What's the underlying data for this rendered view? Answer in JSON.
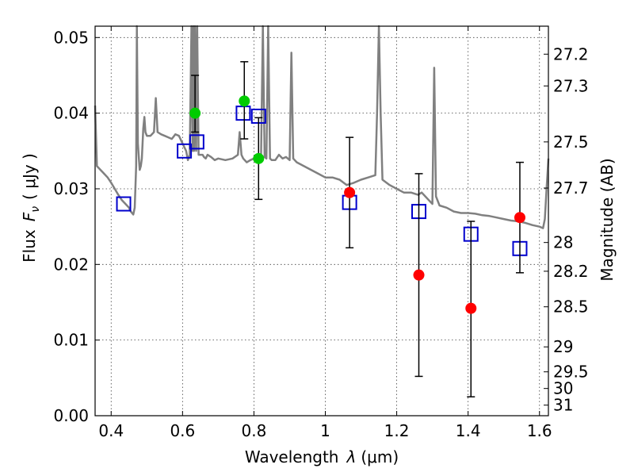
{
  "chart_data": {
    "type": "scatter",
    "xlabel_text": "Wavelength",
    "xlabel_symbol": "λ",
    "xlabel_unit": "(μm)",
    "ylabel_text": "Flux",
    "ylabel_symbol": "F",
    "ylabel_subscript": "ν",
    "ylabel_unit": "( μJy )",
    "y2label": "Magnitude (AB)",
    "xlim": [
      0.355,
      1.625
    ],
    "ylim": [
      0.0,
      0.0515
    ],
    "xticks": [
      {
        "value": 0.4,
        "label": "0.4"
      },
      {
        "value": 0.6,
        "label": "0.6"
      },
      {
        "value": 0.8,
        "label": "0.8"
      },
      {
        "value": 1.0,
        "label": "1"
      },
      {
        "value": 1.2,
        "label": "1.2"
      },
      {
        "value": 1.4,
        "label": "1.4"
      },
      {
        "value": 1.6,
        "label": "1.6"
      }
    ],
    "yticks": [
      {
        "value": 0.0,
        "label": "0.00"
      },
      {
        "value": 0.01,
        "label": "0.01"
      },
      {
        "value": 0.02,
        "label": "0.02"
      },
      {
        "value": 0.03,
        "label": "0.03"
      },
      {
        "value": 0.04,
        "label": "0.04"
      },
      {
        "value": 0.05,
        "label": "0.05"
      }
    ],
    "magnitude_ticks": [
      {
        "flux": 0.0478,
        "label": "27.2"
      },
      {
        "flux": 0.0436,
        "label": "27.3"
      },
      {
        "flux": 0.0362,
        "label": "27.5"
      },
      {
        "flux": 0.0301,
        "label": "27.7"
      },
      {
        "flux": 0.0229,
        "label": "28"
      },
      {
        "flux": 0.0191,
        "label": "28.2"
      },
      {
        "flux": 0.0144,
        "label": "28.5"
      },
      {
        "flux": 0.0091,
        "label": "29"
      },
      {
        "flux": 0.0058,
        "label": "29.5"
      },
      {
        "flux": 0.0036,
        "label": "30"
      },
      {
        "flux": 0.0014,
        "label": "31"
      }
    ],
    "grid": true,
    "colors": {
      "model_spectrum": "#808080",
      "model_photometry": "#0000cc",
      "optical_detections": "#00cc00",
      "nir_detections": "#ff0000",
      "error_bars": "#000000"
    },
    "series": [
      {
        "kind": "line",
        "role": "model_spectrum",
        "x": [
          0.355,
          0.36,
          0.37,
          0.38,
          0.39,
          0.4,
          0.41,
          0.42,
          0.43,
          0.44,
          0.45,
          0.455,
          0.462,
          0.466,
          0.47,
          0.472,
          0.475,
          0.478,
          0.48,
          0.483,
          0.486,
          0.488,
          0.49,
          0.493,
          0.496,
          0.5,
          0.51,
          0.52,
          0.525,
          0.53,
          0.54,
          0.55,
          0.56,
          0.57,
          0.58,
          0.59,
          0.6,
          0.61,
          0.615,
          0.62,
          0.625,
          0.628,
          0.63,
          0.632,
          0.635,
          0.638,
          0.641,
          0.645,
          0.65,
          0.656,
          0.66,
          0.665,
          0.67,
          0.68,
          0.69,
          0.7,
          0.72,
          0.74,
          0.755,
          0.76,
          0.765,
          0.77,
          0.78,
          0.79,
          0.8,
          0.81,
          0.82,
          0.825,
          0.83,
          0.835,
          0.84,
          0.845,
          0.85,
          0.86,
          0.87,
          0.88,
          0.89,
          0.9,
          0.905,
          0.91,
          0.92,
          0.94,
          0.96,
          0.98,
          1.0,
          1.02,
          1.04,
          1.06,
          1.08,
          1.1,
          1.12,
          1.14,
          1.145,
          1.15,
          1.155,
          1.16,
          1.18,
          1.2,
          1.22,
          1.24,
          1.26,
          1.27,
          1.28,
          1.29,
          1.3,
          1.305,
          1.31,
          1.32,
          1.34,
          1.36,
          1.38,
          1.4,
          1.42,
          1.44,
          1.46,
          1.48,
          1.5,
          1.52,
          1.54,
          1.56,
          1.58,
          1.6,
          1.61,
          1.615,
          1.62,
          1.625
        ],
        "y": [
          0.041,
          0.033,
          0.0325,
          0.032,
          0.0315,
          0.0308,
          0.03,
          0.0292,
          0.0285,
          0.028,
          0.0275,
          0.027,
          0.0266,
          0.0275,
          0.033,
          0.0515,
          0.036,
          0.0338,
          0.0325,
          0.033,
          0.034,
          0.036,
          0.038,
          0.0395,
          0.0375,
          0.037,
          0.037,
          0.0375,
          0.042,
          0.0375,
          0.0372,
          0.037,
          0.0368,
          0.0366,
          0.0372,
          0.037,
          0.036,
          0.035,
          0.0338,
          0.0345,
          0.0515,
          0.035,
          0.0515,
          0.035,
          0.0515,
          0.035,
          0.0515,
          0.0345,
          0.0345,
          0.0345,
          0.0342,
          0.034,
          0.0345,
          0.0342,
          0.0338,
          0.034,
          0.0338,
          0.034,
          0.0345,
          0.0375,
          0.0345,
          0.034,
          0.0335,
          0.0338,
          0.034,
          0.0338,
          0.0342,
          0.0515,
          0.0342,
          0.034,
          0.0515,
          0.034,
          0.0338,
          0.0338,
          0.0345,
          0.034,
          0.0342,
          0.0338,
          0.048,
          0.034,
          0.0335,
          0.033,
          0.0325,
          0.032,
          0.0315,
          0.0315,
          0.0312,
          0.0305,
          0.0308,
          0.0312,
          0.0315,
          0.0318,
          0.04,
          0.0515,
          0.04,
          0.0312,
          0.0305,
          0.03,
          0.0295,
          0.0295,
          0.0292,
          0.0295,
          0.029,
          0.0285,
          0.028,
          0.046,
          0.029,
          0.0278,
          0.0275,
          0.027,
          0.0268,
          0.0268,
          0.0267,
          0.0265,
          0.0264,
          0.0262,
          0.026,
          0.0258,
          0.0257,
          0.0255,
          0.0252,
          0.025,
          0.0248,
          0.026,
          0.03,
          0.034
        ]
      },
      {
        "kind": "scatter",
        "role": "model_photometry",
        "marker": "open_square",
        "x": [
          0.435,
          0.605,
          0.64,
          0.77,
          0.813,
          1.068,
          1.262,
          1.408,
          1.545
        ],
        "y": [
          0.028,
          0.035,
          0.0362,
          0.04,
          0.0396,
          0.0282,
          0.027,
          0.024,
          0.0221
        ]
      },
      {
        "kind": "scatter",
        "role": "optical_detections",
        "marker": "filled_circle",
        "x": [
          0.635,
          0.773,
          0.813
        ],
        "y": [
          0.04,
          0.0416,
          0.034
        ],
        "yerr_low": [
          0.0025,
          0.005,
          0.0054
        ],
        "yerr_high": [
          0.005,
          0.0052,
          0.0054
        ]
      },
      {
        "kind": "scatter",
        "role": "nir_detections",
        "marker": "filled_circle",
        "x": [
          1.068,
          1.262,
          1.408,
          1.545
        ],
        "y": [
          0.0295,
          0.0186,
          0.0142,
          0.0262
        ],
        "yerr_low": [
          0.0073,
          0.0134,
          0.0117,
          0.0073
        ],
        "yerr_high": [
          0.0073,
          0.0134,
          0.0115,
          0.0073
        ]
      }
    ]
  }
}
